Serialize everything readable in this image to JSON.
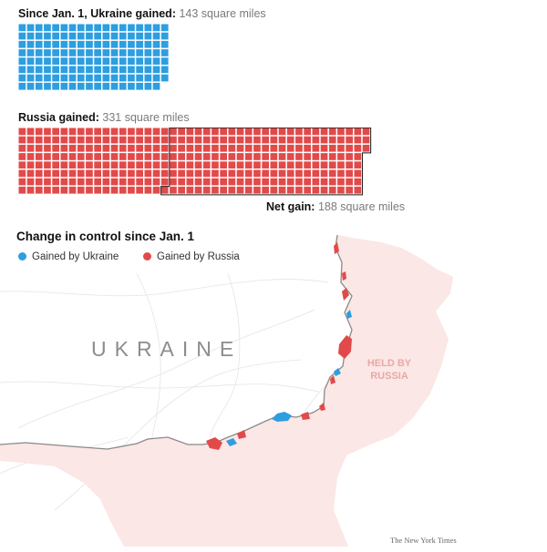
{
  "colors": {
    "ukraine": "#2d9ee0",
    "russia": "#e24a4a",
    "held_by_russia_fill": "#fbe7e5",
    "front_line": "#8a8a8a"
  },
  "ukraine_gain": {
    "label": "Since Jan. 1, Ukraine gained:",
    "value": "143 square miles",
    "square_miles": 143
  },
  "russia_gain": {
    "label": "Russia gained:",
    "value": "331 square miles",
    "square_miles": 331
  },
  "net_gain": {
    "label": "Net gain:",
    "value": "188 square miles",
    "square_miles": 188
  },
  "map": {
    "title": "Change in control since Jan. 1",
    "legend": [
      {
        "label": "Gained by Ukraine",
        "color_key": "ukraine"
      },
      {
        "label": "Gained by Russia",
        "color_key": "russia"
      }
    ],
    "country_label": "UKRAINE",
    "held_label": "HELD BY RUSSIA"
  },
  "credit": "The New York Times"
}
